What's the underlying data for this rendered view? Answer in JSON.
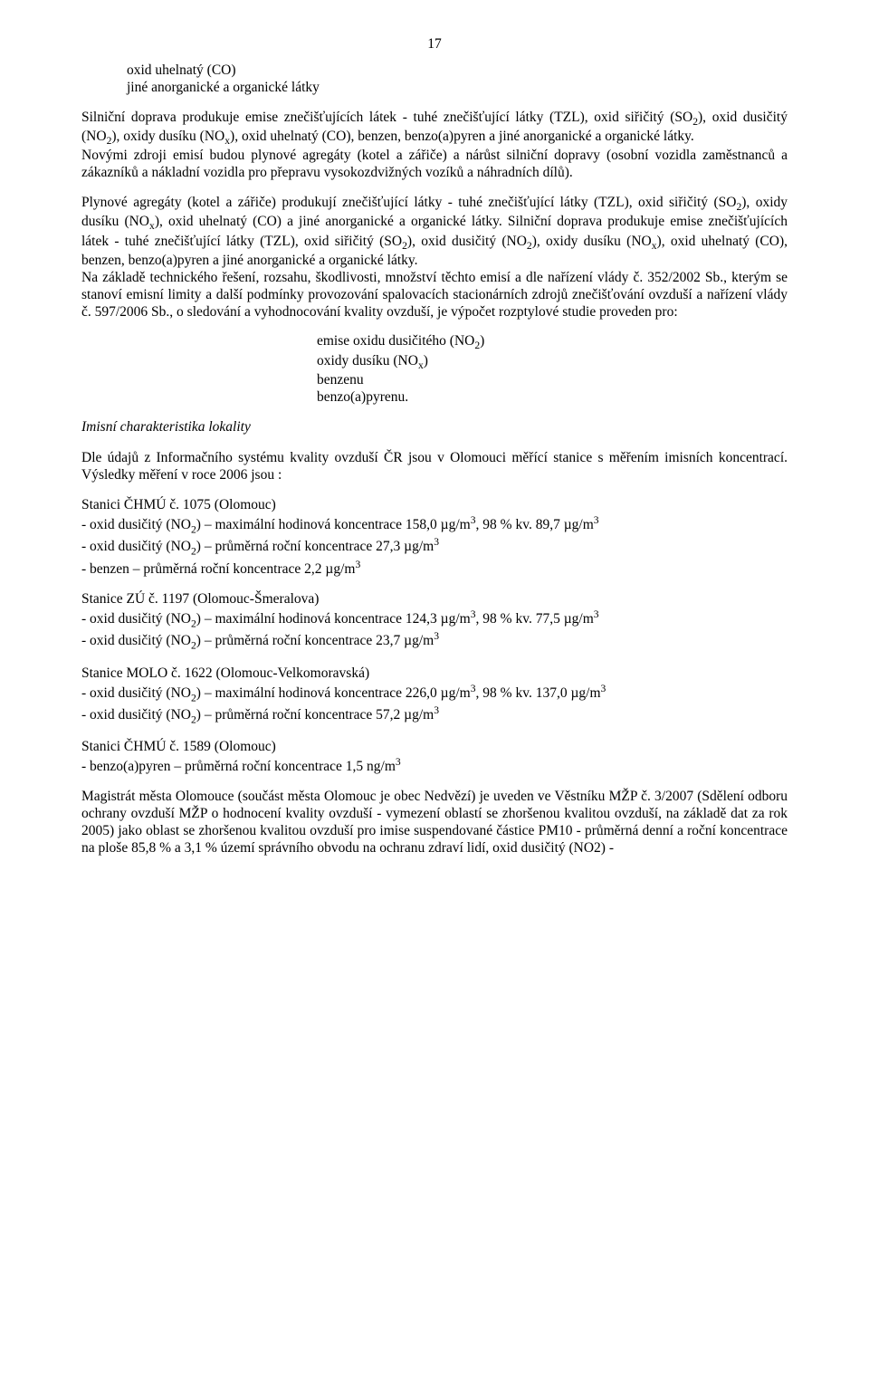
{
  "pagenum": "17",
  "block1": {
    "l1": "oxid uhelnatý (CO)",
    "l2": "jiné anorganické a organické látky"
  },
  "p1a": "Silniční doprava produkuje emise znečišťujících látek - tuhé znečišťující látky (TZL), oxid siřičitý (SO",
  "p1b": "), oxid dusičitý (NO",
  "p1c": "), oxidy dusíku (NO",
  "p1d": "), oxid uhelnatý (CO), benzen, benzo(a)pyren a jiné anorganické a organické látky.",
  "p1e": "Novými zdroji emisí budou plynové agregáty (kotel a zářiče) a nárůst silniční dopravy (osobní vozidla zaměstnanců a zákazníků a nákladní vozidla pro přepravu vysokozdvižných vozíků a náhradních dílů).",
  "p2a": "Plynové agregáty (kotel a zářiče) produkují znečišťující látky - tuhé znečišťující látky (TZL), oxid siřičitý (SO",
  "p2b": "), oxidy dusíku (NO",
  "p2c": "), oxid uhelnatý (CO) a jiné anorganické a organické látky. Silniční doprava produkuje emise znečišťujících látek - tuhé znečišťující látky (TZL), oxid siřičitý (SO",
  "p2d": "), oxid dusičitý (NO",
  "p2e": "), oxidy dusíku (NO",
  "p2f": "), oxid uhelnatý (CO), benzen, benzo(a)pyren a jiné anorganické a organické látky.",
  "p2g": "Na základě technického řešení, rozsahu, škodlivosti, množství těchto emisí a dle nařízení vlády č. 352/2002 Sb., kterým se stanoví emisní limity a další podmínky provozování spalovacích stacionárních zdrojů znečišťování ovzduší a nařízení vlády č. 597/2006 Sb., o sledování a vyhodnocování kvality ovzduší, je výpočet rozptylové studie proveden pro:",
  "centerlist": {
    "l1a": "emise oxidu dusičitého (NO",
    "l1b": ")",
    "l2a": "oxidy dusíku (NO",
    "l2b": ")",
    "l3": "benzenu",
    "l4": "benzo(a)pyrenu."
  },
  "imis_heading": "Imisní charakteristika lokality",
  "p3": "Dle údajů z Informačního systému kvality ovzduší ČR jsou v Olomouci měřící stanice s měřením imisních koncentrací. Výsledky měření v roce 2006 jsou :",
  "st1": {
    "title": "Stanici ČHMÚ č. 1075 (Olomouc)",
    "l1a": "- oxid dusičitý (NO",
    "l1b": ") – maximální hodinová koncentrace 158,0 µg/m",
    "l1c": ", 98 % kv. 89,7 µg/m",
    "l2a": "- oxid dusičitý (NO",
    "l2b": ") – průměrná roční koncentrace 27,3 µg/m",
    "l3a": "- benzen – průměrná roční koncentrace 2,2 µg/m"
  },
  "st2": {
    "title": "Stanice ZÚ č. 1197 (Olomouc-Šmeralova)",
    "l1a": "- oxid dusičitý (NO",
    "l1b": ") – maximální hodinová koncentrace 124,3 µg/m",
    "l1c": ", 98 % kv. 77,5 µg/m",
    "l2a": "- oxid dusičitý (NO",
    "l2b": ") – průměrná roční koncentrace 23,7 µg/m"
  },
  "st3": {
    "title": "Stanice MOLO č. 1622 (Olomouc-Velkomoravská)",
    "l1a": "- oxid dusičitý (NO",
    "l1b": ") – maximální hodinová koncentrace 226,0 µg/m",
    "l1c": ", 98 % kv. 137,0 µg/m",
    "l2a": "- oxid dusičitý (NO",
    "l2b": ") – průměrná roční koncentrace 57,2 µg/m"
  },
  "st4": {
    "title": "Stanici ČHMÚ č. 1589 (Olomouc)",
    "l1a": "- benzo(a)pyren – průměrná roční koncentrace 1,5 ng/m"
  },
  "p4": "Magistrát města Olomouce (součást města Olomouc je obec Nedvězí) je uveden ve Věstníku MŽP č. 3/2007 (Sdělení odboru ochrany ovzduší MŽP o hodnocení kvality ovzduší - vymezení oblastí se zhoršenou kvalitou ovzduší, na základě dat za rok 2005) jako oblast se zhoršenou kvalitou ovzduší pro imise suspendované částice PM10 - průměrná denní a roční koncentrace na ploše 85,8 % a 3,1 % území správního obvodu na ochranu zdraví lidí, oxid dusičitý (NO2) -",
  "sub2": "2",
  "subx": "x",
  "sup3": "3"
}
